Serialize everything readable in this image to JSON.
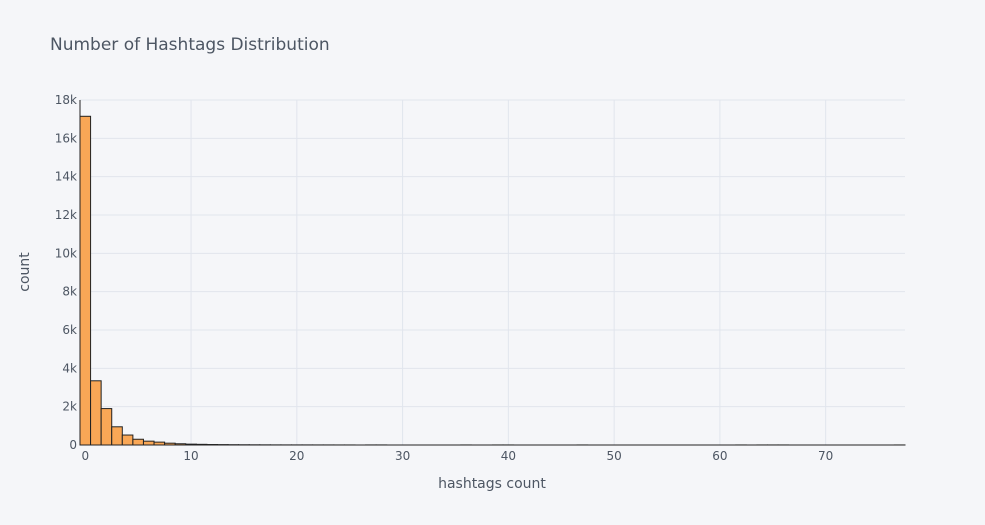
{
  "chart_data": {
    "type": "bar",
    "title": "Number of Hashtags Distribution",
    "xlabel": "hashtags count",
    "ylabel": "count",
    "xlim": [
      -0.5,
      77.5
    ],
    "ylim": [
      0,
      18000
    ],
    "xticks": [
      {
        "value": 0,
        "label": "0"
      },
      {
        "value": 10,
        "label": "10"
      },
      {
        "value": 20,
        "label": "20"
      },
      {
        "value": 30,
        "label": "30"
      },
      {
        "value": 40,
        "label": "40"
      },
      {
        "value": 50,
        "label": "50"
      },
      {
        "value": 60,
        "label": "60"
      },
      {
        "value": 70,
        "label": "70"
      }
    ],
    "yticks": [
      {
        "value": 0,
        "label": "0"
      },
      {
        "value": 2000,
        "label": "2k"
      },
      {
        "value": 4000,
        "label": "4k"
      },
      {
        "value": 6000,
        "label": "6k"
      },
      {
        "value": 8000,
        "label": "8k"
      },
      {
        "value": 10000,
        "label": "10k"
      },
      {
        "value": 12000,
        "label": "12k"
      },
      {
        "value": 14000,
        "label": "14k"
      },
      {
        "value": 16000,
        "label": "16k"
      },
      {
        "value": 18000,
        "label": "18k"
      }
    ],
    "grid": true,
    "bar_color": "#f9a756",
    "bar_edge_color": "#222222",
    "x": [
      0,
      1,
      2,
      3,
      4,
      5,
      6,
      7,
      8,
      9,
      10,
      11,
      12,
      13,
      14,
      15,
      16,
      17,
      18,
      19,
      20,
      21,
      22,
      23,
      24,
      25,
      27,
      28,
      36,
      39,
      40,
      47,
      62,
      64,
      65,
      66,
      77
    ],
    "values": [
      17150,
      3350,
      1900,
      950,
      520,
      300,
      200,
      150,
      95,
      65,
      45,
      35,
      25,
      20,
      15,
      12,
      10,
      8,
      6,
      5,
      5,
      5,
      4,
      4,
      3,
      3,
      4,
      4,
      3,
      3,
      3,
      3,
      3,
      3,
      3,
      3,
      3
    ]
  }
}
